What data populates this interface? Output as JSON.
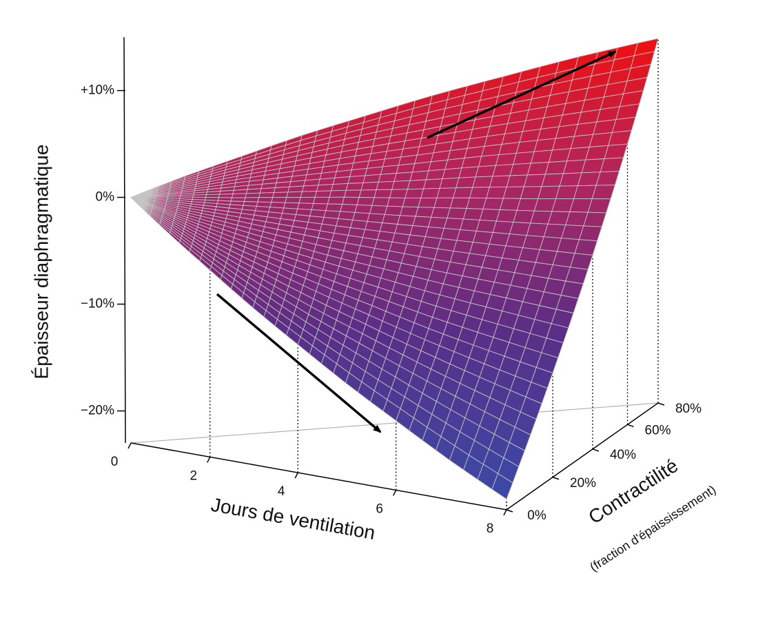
{
  "chart_data": {
    "type": "surface",
    "zlabel": "Épaisseur diaphragmatique",
    "xlabel": "Jours de ventilation",
    "ylabel": "Contractilité",
    "ylabel_sub": "(fraction d'épaississement)",
    "x": [
      0,
      1,
      2,
      3,
      4,
      5,
      6,
      7,
      8
    ],
    "y": [
      0,
      10,
      20,
      30,
      40,
      50,
      60,
      70,
      80
    ],
    "z": [
      [
        0,
        -2.8,
        -5.5,
        -8.3,
        -11,
        -13.8,
        -16.5,
        -19.3,
        -22
      ],
      [
        0,
        -2.2,
        -4.4,
        -6.6,
        -8.8,
        -10.9,
        -13.1,
        -15.3,
        -17.5
      ],
      [
        0,
        -1.6,
        -3.3,
        -4.9,
        -6.5,
        -8.1,
        -9.8,
        -11.4,
        -13
      ],
      [
        0,
        -1.1,
        -2.1,
        -3.2,
        -4.3,
        -5.3,
        -6.4,
        -7.4,
        -8.5
      ],
      [
        0,
        -0.5,
        -1,
        -1.5,
        -2,
        -2.5,
        -3,
        -3.5,
        -4
      ],
      [
        0,
        0.1,
        0.1,
        0.2,
        0.3,
        0.3,
        0.4,
        0.4,
        0.5
      ],
      [
        0,
        0.6,
        1.3,
        1.9,
        2.5,
        3.1,
        3.8,
        4.4,
        5
      ],
      [
        0,
        1.2,
        2.4,
        3.6,
        4.8,
        5.9,
        7.1,
        8.3,
        9.5
      ],
      [
        0,
        1.8,
        3.5,
        5.3,
        7,
        8.8,
        10.5,
        12.3,
        14
      ]
    ],
    "xlim": [
      0,
      8
    ],
    "xticks": [
      0,
      2,
      4,
      6,
      8
    ],
    "ylim": [
      0,
      80
    ],
    "yticks": [
      {
        "value": 0,
        "label": "0%"
      },
      {
        "value": 20,
        "label": "20%"
      },
      {
        "value": 40,
        "label": "40%"
      },
      {
        "value": 60,
        "label": "60%"
      },
      {
        "value": 80,
        "label": "80%"
      }
    ],
    "zlim": [
      -23,
      15
    ],
    "zticks": [
      {
        "value": -20,
        "label": "−20%"
      },
      {
        "value": -10,
        "label": "−10%"
      },
      {
        "value": 0,
        "label": "0%"
      },
      {
        "value": 10,
        "label": "+10%"
      }
    ],
    "colorscale": [
      "#3a4aa6",
      "#5a2e86",
      "#b0255f",
      "#f01010"
    ],
    "mesh_color": "#c4c4c4"
  }
}
